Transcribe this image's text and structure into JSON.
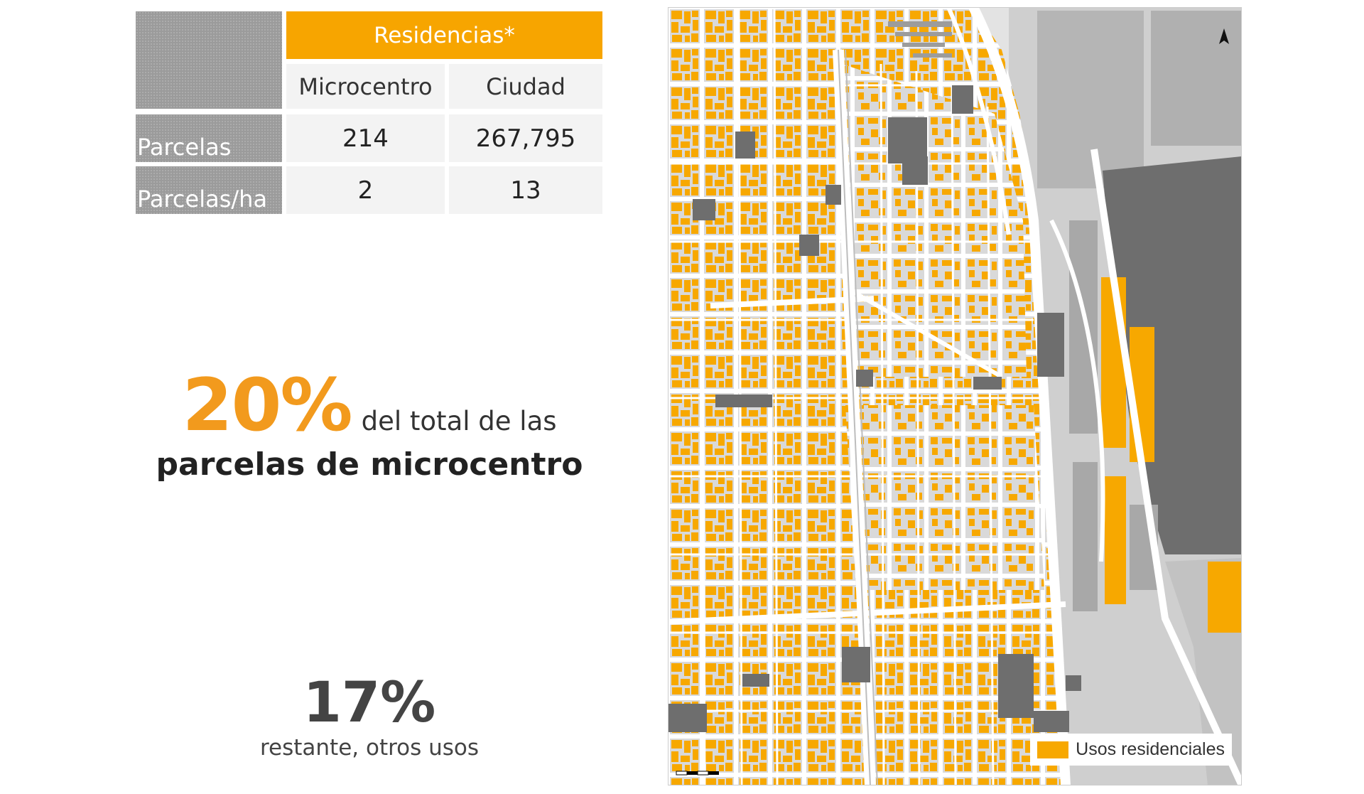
{
  "table": {
    "header": "Residencias*",
    "columns": [
      "Microcentro",
      "Ciudad"
    ],
    "rows": [
      {
        "label": "Parcelas",
        "values": [
          "214",
          "267,795"
        ]
      },
      {
        "label": "Parcelas/ha",
        "values": [
          "2",
          "13"
        ]
      }
    ]
  },
  "stats": {
    "primary": {
      "value": "20%",
      "text": "del total de las",
      "text_bold": "parcelas de microcentro"
    },
    "secondary": {
      "value": "17%",
      "text": "restante, otros usos"
    }
  },
  "map": {
    "legend_label": "Usos residenciales",
    "colors": {
      "residential": "#f7a800",
      "block": "#d9d9d9",
      "street": "#ffffff",
      "dark": "#6e6e6e",
      "mid": "#a8a8a8"
    },
    "icons": [
      "north-arrow-icon",
      "scale-bar"
    ]
  }
}
